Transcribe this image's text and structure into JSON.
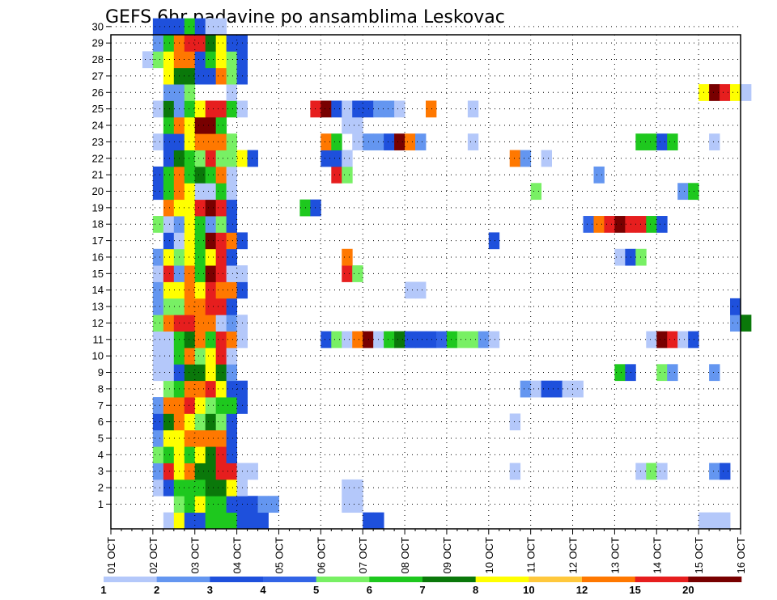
{
  "chart_data": {
    "type": "heatmap",
    "title": "GEFS 6hr padavine po ansamblima Leskovac",
    "x_tick_labels": [
      "01 OCT",
      "02 OCT",
      "03 OCT",
      "04 OCT",
      "05 OCT",
      "06 OCT",
      "07 OCT",
      "08 OCT",
      "09 OCT",
      "10 OCT",
      "11 OCT",
      "12 OCT",
      "13 OCT",
      "14 OCT",
      "15 OCT",
      "16 OCT"
    ],
    "y_tick_labels": [
      "1",
      "2",
      "3",
      "4",
      "5",
      "6",
      "7",
      "8",
      "9",
      "10",
      "11",
      "12",
      "13",
      "14",
      "15",
      "16",
      "17",
      "18",
      "19",
      "20",
      "21",
      "22",
      "23",
      "24",
      "25",
      "26",
      "27",
      "28",
      "29",
      "30"
    ],
    "x_range": [
      "01 OCT",
      "16 OCT"
    ],
    "y_range": [
      0,
      30
    ],
    "time_step_hours": 6,
    "grid": true,
    "colorbar": {
      "levels": [
        "1",
        "2",
        "3",
        "4",
        "5",
        "6",
        "7",
        "8",
        "10",
        "12",
        "15",
        "20"
      ],
      "colors": [
        "#b4c8fa",
        "#6496f0",
        "#1e50dc",
        "#3264e6",
        "#78f064",
        "#1ec81e",
        "#0a780a",
        "#ffff00",
        "#ffc83c",
        "#ff7800",
        "#e61e1e",
        "#780000"
      ]
    },
    "note_levels": "each value is a colorbar category index 1-12 (bin lower bound in mm from colorbar.levels); member 0 is the control row at bottom",
    "cells": [
      {
        "member": 0,
        "from": "02 OCT 06",
        "values": [
          1,
          8,
          3,
          3,
          6,
          6,
          6,
          3,
          3,
          3
        ]
      },
      {
        "member": 0,
        "from": "07 OCT 00",
        "values": [
          3,
          3
        ]
      },
      {
        "member": 0,
        "from": "15 OCT 00",
        "values": [
          1,
          1,
          1
        ]
      },
      {
        "member": 1,
        "from": "02 OCT 12",
        "values": [
          5,
          6,
          8,
          6,
          6,
          3,
          3,
          3,
          2,
          2
        ]
      },
      {
        "member": 1,
        "from": "06 OCT 12",
        "values": [
          1,
          1
        ]
      },
      {
        "member": 2,
        "from": "02 OCT 00",
        "values": [
          1,
          3,
          6,
          6,
          6,
          7,
          7,
          8,
          1
        ]
      },
      {
        "member": 2,
        "from": "06 OCT 12",
        "values": [
          1,
          1
        ]
      },
      {
        "member": 3,
        "from": "02 OCT 00",
        "values": [
          2,
          11,
          8,
          10,
          7,
          7,
          11,
          11,
          1,
          1
        ]
      },
      {
        "member": 3,
        "from": "10 OCT 12",
        "values": [
          1
        ]
      },
      {
        "member": 3,
        "from": "13 OCT 12",
        "values": [
          1,
          5,
          1
        ]
      },
      {
        "member": 3,
        "from": "15 OCT 06",
        "values": [
          2,
          3
        ]
      },
      {
        "member": 4,
        "from": "02 OCT 00",
        "values": [
          5,
          6,
          8,
          6,
          8,
          7,
          11,
          3
        ]
      },
      {
        "member": 5,
        "from": "02 OCT 00",
        "values": [
          2,
          8,
          8,
          10,
          10,
          10,
          10,
          3
        ]
      },
      {
        "member": 6,
        "from": "02 OCT 00",
        "values": [
          3,
          7,
          10,
          8,
          5,
          7,
          5,
          3
        ]
      },
      {
        "member": 6,
        "from": "10 OCT 12",
        "values": [
          1
        ]
      },
      {
        "member": 7,
        "from": "02 OCT 00",
        "values": [
          2,
          10,
          10,
          11,
          8,
          5,
          6,
          6,
          3
        ]
      },
      {
        "member": 8,
        "from": "02 OCT 06",
        "values": [
          5,
          6,
          10,
          10,
          11,
          8,
          3,
          3
        ]
      },
      {
        "member": 8,
        "from": "10 OCT 18",
        "values": [
          2,
          1,
          3,
          3,
          1,
          1
        ]
      },
      {
        "member": 9,
        "from": "02 OCT 00",
        "values": [
          1,
          1,
          3,
          7,
          7,
          8,
          7,
          2
        ]
      },
      {
        "member": 9,
        "from": "13 OCT 00",
        "values": [
          6,
          3
        ]
      },
      {
        "member": 9,
        "from": "14 OCT 00",
        "values": [
          5,
          2
        ]
      },
      {
        "member": 9,
        "from": "15 OCT 06",
        "values": [
          2
        ]
      },
      {
        "member": 10,
        "from": "02 OCT 00",
        "values": [
          1,
          1,
          6,
          10,
          5,
          8,
          11,
          1
        ]
      },
      {
        "member": 11,
        "from": "02 OCT 00",
        "values": [
          1,
          1,
          6,
          7,
          10,
          6,
          11,
          10,
          1
        ]
      },
      {
        "member": 11,
        "from": "06 OCT 00",
        "values": [
          3,
          5,
          1,
          10,
          12,
          1,
          6,
          7,
          3,
          3,
          3,
          4,
          6,
          5,
          5,
          2,
          1
        ]
      },
      {
        "member": 11,
        "from": "13 OCT 18",
        "values": [
          1,
          12,
          11,
          1,
          3
        ]
      },
      {
        "member": 12,
        "from": "02 OCT 00",
        "values": [
          5,
          10,
          11,
          11,
          10,
          10,
          1,
          2,
          1
        ]
      },
      {
        "member": 12,
        "from": "15 OCT 18",
        "values": [
          2,
          7
        ]
      },
      {
        "member": 13,
        "from": "02 OCT 00",
        "values": [
          2,
          5,
          5,
          10,
          10,
          11,
          11,
          3
        ]
      },
      {
        "member": 13,
        "from": "15 OCT 18",
        "values": [
          3
        ]
      },
      {
        "member": 14,
        "from": "02 OCT 00",
        "values": [
          2,
          8,
          8,
          10,
          8,
          11,
          10,
          10,
          3
        ]
      },
      {
        "member": 14,
        "from": "08 OCT 00",
        "values": [
          1,
          1
        ]
      },
      {
        "member": 15,
        "from": "02 OCT 00",
        "values": [
          1,
          11,
          2,
          10,
          6,
          12,
          11,
          1,
          1
        ]
      },
      {
        "member": 15,
        "from": "06 OCT 12",
        "values": [
          11,
          5
        ]
      },
      {
        "member": 16,
        "from": "02 OCT 00",
        "values": [
          2,
          8,
          5,
          8,
          6,
          8,
          11,
          3
        ]
      },
      {
        "member": 16,
        "from": "06 OCT 12",
        "values": [
          10
        ]
      },
      {
        "member": 16,
        "from": "13 OCT 00",
        "values": [
          1,
          3,
          5
        ]
      },
      {
        "member": 17,
        "from": "02 OCT 06",
        "values": [
          3,
          1,
          8,
          6,
          12,
          11,
          10,
          3
        ]
      },
      {
        "member": 17,
        "from": "10 OCT 00",
        "values": [
          3
        ]
      },
      {
        "member": 18,
        "from": "02 OCT 00",
        "values": [
          5,
          1,
          2,
          8,
          6,
          2,
          5,
          3
        ]
      },
      {
        "member": 18,
        "from": "12 OCT 06",
        "values": [
          4,
          10,
          11,
          12,
          11,
          11,
          6,
          3
        ]
      },
      {
        "member": 19,
        "from": "02 OCT 06",
        "values": [
          10,
          8,
          8,
          11,
          12,
          11,
          3
        ]
      },
      {
        "member": 19,
        "from": "05 OCT 12",
        "values": [
          6,
          3
        ]
      },
      {
        "member": 20,
        "from": "02 OCT 00",
        "values": [
          3,
          6,
          10,
          8,
          1,
          1,
          6,
          1
        ]
      },
      {
        "member": 20,
        "from": "11 OCT 00",
        "values": [
          5
        ]
      },
      {
        "member": 20,
        "from": "14 OCT 12",
        "values": [
          2,
          6
        ]
      },
      {
        "member": 21,
        "from": "02 OCT 00",
        "values": [
          3,
          6,
          10,
          6,
          7,
          6,
          10,
          1
        ]
      },
      {
        "member": 21,
        "from": "06 OCT 06",
        "values": [
          11,
          5
        ]
      },
      {
        "member": 21,
        "from": "12 OCT 12",
        "values": [
          2
        ]
      },
      {
        "member": 22,
        "from": "02 OCT 06",
        "values": [
          3,
          7,
          6,
          5,
          11,
          5,
          5,
          8,
          3
        ]
      },
      {
        "member": 22,
        "from": "06 OCT 00",
        "values": [
          3,
          3,
          1
        ]
      },
      {
        "member": 22,
        "from": "10 OCT 12",
        "values": [
          10,
          2
        ]
      },
      {
        "member": 22,
        "from": "11 OCT 06",
        "values": [
          1
        ]
      },
      {
        "member": 23,
        "from": "02 OCT 00",
        "values": [
          1,
          3,
          3,
          8,
          10,
          10,
          10,
          5
        ]
      },
      {
        "member": 23,
        "from": "06 OCT 00",
        "values": [
          10,
          6
        ]
      },
      {
        "member": 23,
        "from": "06 OCT 18",
        "values": [
          1,
          2,
          2,
          3,
          12,
          10,
          2
        ]
      },
      {
        "member": 23,
        "from": "09 OCT 12",
        "values": [
          1
        ]
      },
      {
        "member": 23,
        "from": "13 OCT 12",
        "values": [
          6,
          6,
          3,
          6
        ]
      },
      {
        "member": 23,
        "from": "15 OCT 06",
        "values": [
          1
        ]
      },
      {
        "member": 24,
        "from": "02 OCT 06",
        "values": [
          6,
          10,
          8,
          12,
          12,
          6
        ]
      },
      {
        "member": 24,
        "from": "06 OCT 12",
        "values": [
          1,
          1
        ]
      },
      {
        "member": 25,
        "from": "02 OCT 00",
        "values": [
          1,
          7,
          2,
          6,
          8,
          11,
          11,
          6,
          1
        ]
      },
      {
        "member": 25,
        "from": "05 OCT 18",
        "values": [
          11,
          12,
          3,
          1,
          3,
          3,
          2,
          2,
          1
        ]
      },
      {
        "member": 25,
        "from": "08 OCT 12",
        "values": [
          10
        ]
      },
      {
        "member": 25,
        "from": "09 OCT 12",
        "values": [
          1
        ]
      },
      {
        "member": 26,
        "from": "02 OCT 06",
        "values": [
          2,
          2,
          5
        ]
      },
      {
        "member": 26,
        "from": "03 OCT 18",
        "values": [
          1
        ]
      },
      {
        "member": 26,
        "from": "15 OCT 00",
        "values": [
          8,
          12,
          11,
          8,
          1
        ]
      },
      {
        "member": 27,
        "from": "02 OCT 06",
        "values": [
          8,
          7,
          7,
          3,
          3,
          10,
          5,
          3
        ]
      },
      {
        "member": 28,
        "from": "01 OCT 18",
        "values": [
          1,
          5,
          8,
          10,
          10,
          3,
          6,
          8,
          5,
          3
        ]
      },
      {
        "member": 29,
        "from": "02 OCT 00",
        "values": [
          2,
          6,
          10,
          11,
          11,
          7,
          8,
          3,
          3
        ]
      },
      {
        "member": 30,
        "from": "02 OCT 00",
        "values": [
          3,
          3,
          3,
          6,
          3,
          1,
          1
        ]
      }
    ]
  }
}
